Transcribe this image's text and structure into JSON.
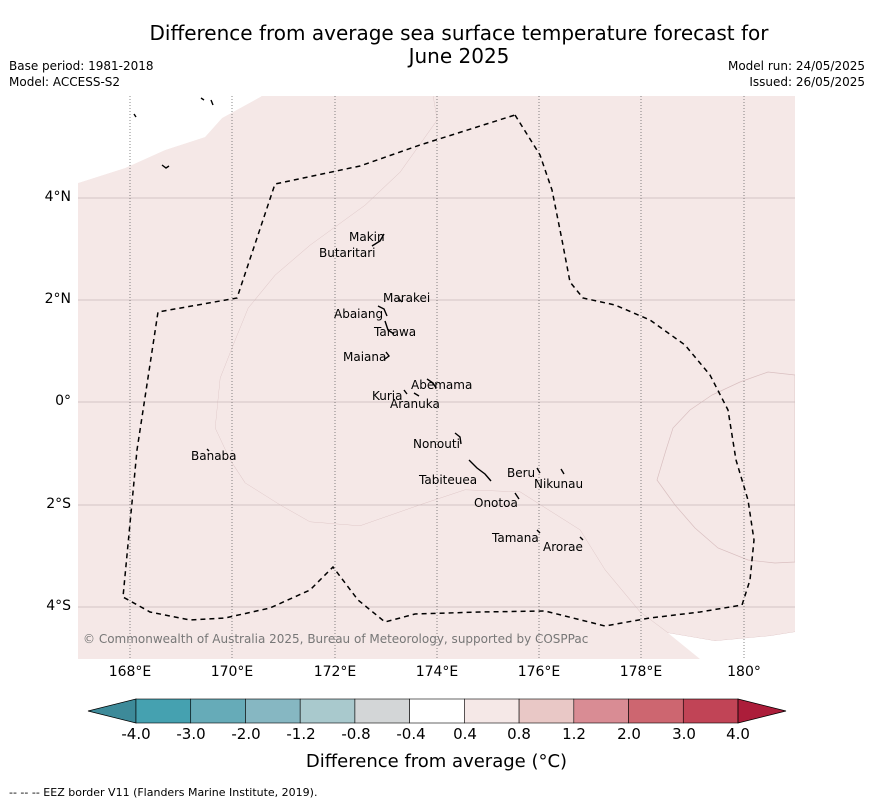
{
  "title_lines": [
    "Difference from average sea surface temperature forecast for",
    "June 2025"
  ],
  "meta_left": [
    "Base period: 1981-2018",
    "Model: ACCESS-S2"
  ],
  "meta_right": [
    "Model run: 24/05/2025",
    "Issued: 26/05/2025"
  ],
  "axes": {
    "x_ticks": [
      "168°E",
      "170°E",
      "172°E",
      "174°E",
      "176°E",
      "178°E",
      "180°"
    ],
    "y_ticks": [
      "4°N",
      "2°N",
      "0°",
      "2°S",
      "4°S"
    ]
  },
  "places": [
    "Makin",
    "Butaritari",
    "Marakei",
    "Abaiang",
    "Tarawa",
    "Maiana",
    "Abemama",
    "Kuria",
    "Aranuka",
    "Nonouti",
    "Banaba",
    "Beru",
    "Nikunau",
    "Tabiteuea",
    "Onotoa",
    "Tamana",
    "Arorae"
  ],
  "credit": "© Commonwealth of Australia 2025, Bureau of Meteorology, supported by COSPPac",
  "colorbar": {
    "labels": [
      "-4.0",
      "-3.0",
      "-2.0",
      "-1.2",
      "-0.8",
      "-0.4",
      "0.4",
      "0.8",
      "1.2",
      "2.0",
      "3.0",
      "4.0"
    ],
    "colors": [
      "#3d8a99",
      "#45a1b0",
      "#66abb8",
      "#86b7c2",
      "#a9c9cd",
      "#d3d6d7",
      "#ffffff",
      "#f5e8e7",
      "#e9c8c6",
      "#d98c94",
      "#cd6670",
      "#c14456",
      "#ac1d3a"
    ],
    "title": "Difference from average (°C)"
  },
  "map_colors": {
    "anomaly_fill": "#f5e8e7"
  },
  "eez_note": "--  --  -- EEZ border V11 (Flanders Marine Institute, 2019)."
}
